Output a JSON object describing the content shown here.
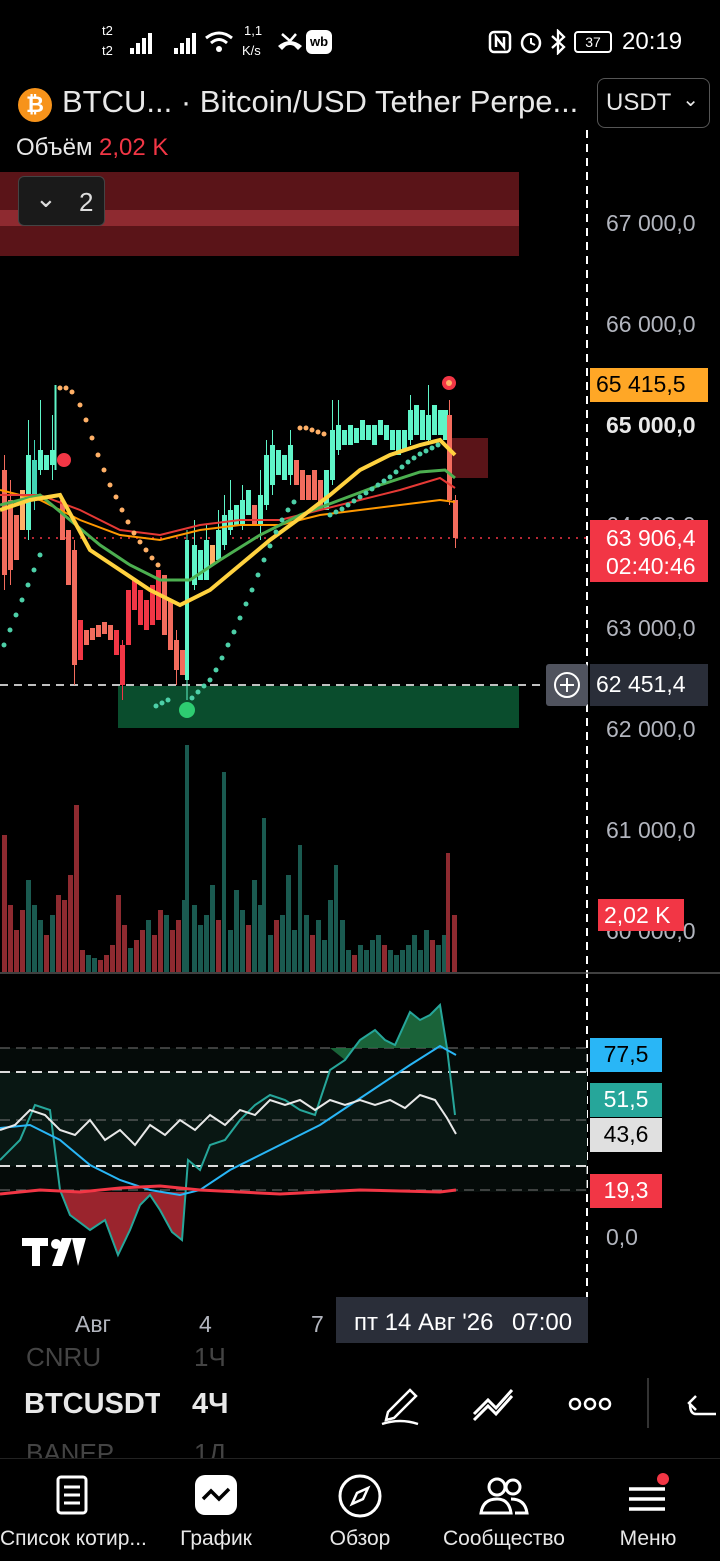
{
  "status_bar": {
    "sim1": "t2",
    "sim2": "t2",
    "speed_value": "1,1",
    "speed_unit": "K/s",
    "battery": "37",
    "time": "20:19"
  },
  "header": {
    "symbol_short": "BTCU...",
    "title": "· Bitcoin/USD Tether Perpe...",
    "volume_label": "Объём",
    "volume_value": "2,02 K",
    "currency": "USDT",
    "collapse_count": "2"
  },
  "price_axis": {
    "levels": [
      "67 000,0",
      "66 000,0",
      "65 000,0",
      "63 000,0",
      "62 000,0",
      "61 000,0",
      "60 000,0"
    ],
    "partial_level": "64 000,0",
    "tag_alert": "65 415,5",
    "tag_last": "63 906,4",
    "tag_countdown": "02:40:46",
    "crosshair_price": "62 451,4",
    "volume_tag": "2,02 K"
  },
  "oscillator_axis": {
    "tag_upper": "77,5",
    "tag_mid": "51,5",
    "tag_white": "43,6",
    "tag_lower": "19,3",
    "zero": "0,0"
  },
  "time_axis": {
    "labels": [
      "Авг",
      "4",
      "7"
    ],
    "crosshair_date": "пт 14 Авг '26",
    "crosshair_time": "07:00"
  },
  "symbol_list": {
    "prev_symbol": "CNRU",
    "prev_interval": "1Ч",
    "symbol": "BTCUSDT",
    "interval": "4Ч",
    "next_symbol": "BANEP",
    "next_interval": "1Д"
  },
  "bottom_nav": [
    {
      "label": "Список котир...",
      "icon": "watchlist-icon"
    },
    {
      "label": "График",
      "icon": "chart-icon"
    },
    {
      "label": "Обзор",
      "icon": "compass-icon"
    },
    {
      "label": "Сообщество",
      "icon": "community-icon"
    },
    {
      "label": "Меню",
      "icon": "menu-icon"
    }
  ],
  "colors": {
    "up": "#26a69a",
    "up_bright": "#5ff5c8",
    "down": "#f23645",
    "yellow_ma": "#ffd23f",
    "green_ma": "#4caf50",
    "red_ma": "#e53935",
    "orange_ma": "#ff9800",
    "rsi_blue": "#29b6f6",
    "orange_tag": "#ffa726"
  }
}
